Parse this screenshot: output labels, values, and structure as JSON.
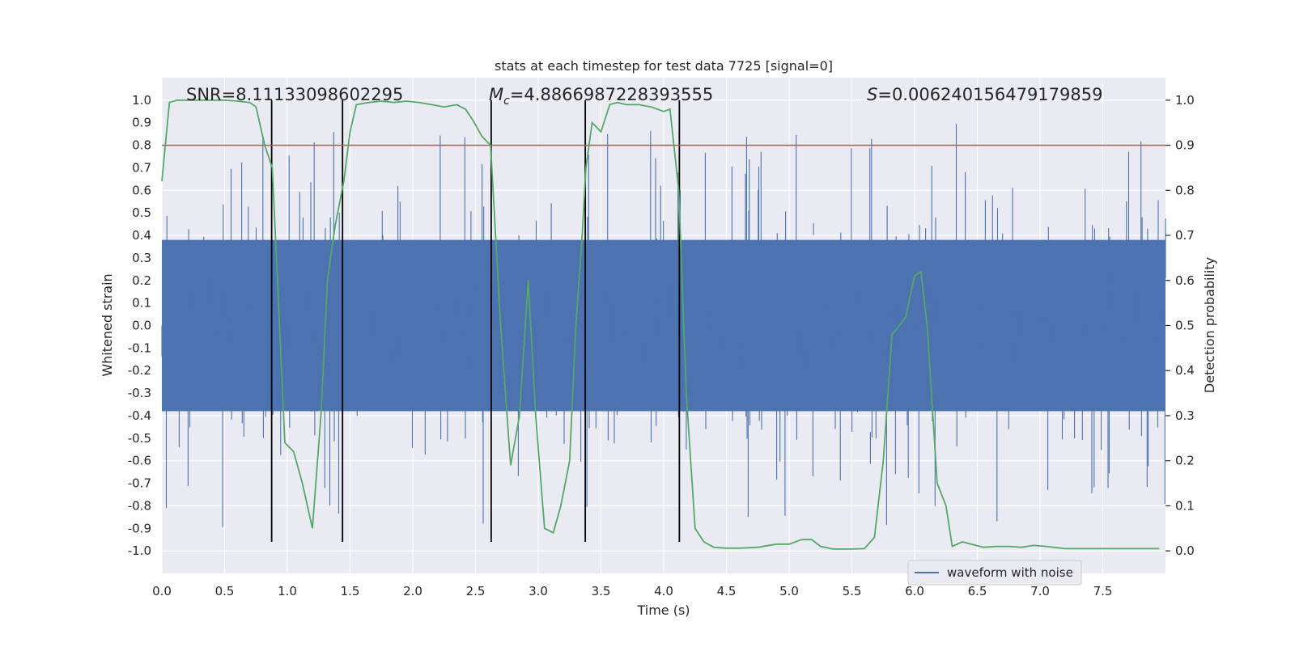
{
  "chart_data": {
    "type": "line",
    "title": "stats at each timestep for test data 7725 [signal=0]",
    "xlabel": "Time (s)",
    "ylabel_left": "Whitened strain",
    "ylabel_right": "Detection probability",
    "xlim": [
      0.0,
      8.0
    ],
    "ylim_left": [
      -1.1,
      1.1
    ],
    "ylim_right": [
      -0.05,
      1.05
    ],
    "x_ticks": [
      "0.0",
      "0.5",
      "1.0",
      "1.5",
      "2.0",
      "2.5",
      "3.0",
      "3.5",
      "4.0",
      "4.5",
      "5.0",
      "5.5",
      "6.0",
      "6.5",
      "7.0",
      "7.5"
    ],
    "y_ticks_left": [
      "1.0",
      "0.9",
      "0.8",
      "0.7",
      "0.6",
      "0.5",
      "0.4",
      "0.3",
      "0.2",
      "0.1",
      "0.0",
      "-0.1",
      "-0.2",
      "-0.3",
      "-0.4",
      "-0.5",
      "-0.6",
      "-0.7",
      "-0.8",
      "-0.9",
      "-1.0"
    ],
    "y_ticks_right": [
      "1.0",
      "0.9",
      "0.8",
      "0.7",
      "0.6",
      "0.5",
      "0.4",
      "0.3",
      "0.2",
      "0.1",
      "0.0"
    ],
    "grid": true,
    "legend_position": "lower-right",
    "annotations": {
      "snr": "SNR=8.11133098602295",
      "mc_symbol": "M",
      "mc_sub": "c",
      "mc_value": "=4.8866987228393555",
      "s_symbol": "S",
      "s_value": "=0.006240156479179859"
    },
    "series": [
      {
        "name": "waveform with noise",
        "color": "#4c72b0",
        "axis": "left",
        "kind": "noise_band",
        "envelope": {
          "typical_abs": 0.4,
          "max": 0.98,
          "min": -0.96
        }
      },
      {
        "name": "",
        "color": "#55a868",
        "axis": "right",
        "x": [
          0.0,
          0.06,
          0.12,
          0.2,
          0.3,
          0.4,
          0.5,
          0.6,
          0.7,
          0.75,
          0.82,
          0.88,
          0.93,
          0.98,
          1.05,
          1.12,
          1.2,
          1.27,
          1.32,
          1.38,
          1.45,
          1.5,
          1.55,
          1.65,
          1.75,
          1.85,
          1.95,
          2.05,
          2.15,
          2.25,
          2.35,
          2.42,
          2.48,
          2.55,
          2.62,
          2.7,
          2.78,
          2.85,
          2.92,
          2.98,
          3.05,
          3.12,
          3.18,
          3.25,
          3.3,
          3.35,
          3.38,
          3.43,
          3.5,
          3.57,
          3.63,
          3.7,
          3.8,
          3.9,
          4.0,
          4.05,
          4.12,
          4.18,
          4.25,
          4.32,
          4.4,
          4.5,
          4.6,
          4.75,
          4.9,
          5.0,
          5.1,
          5.18,
          5.25,
          5.35,
          5.5,
          5.6,
          5.68,
          5.75,
          5.82,
          5.88,
          5.93,
          6.0,
          6.05,
          6.1,
          6.18,
          6.25,
          6.3,
          6.38,
          6.45,
          6.55,
          6.65,
          6.75,
          6.85,
          6.95,
          7.05,
          7.2,
          7.4,
          7.6,
          7.8,
          7.95
        ],
        "y": [
          0.82,
          0.995,
          1.0,
          1.0,
          1.0,
          1.0,
          1.0,
          0.998,
          0.995,
          0.985,
          0.9,
          0.85,
          0.55,
          0.24,
          0.22,
          0.15,
          0.05,
          0.31,
          0.6,
          0.72,
          0.82,
          0.93,
          0.99,
          0.995,
          0.998,
          0.995,
          0.998,
          0.995,
          0.99,
          0.985,
          0.99,
          0.98,
          0.955,
          0.92,
          0.9,
          0.5,
          0.19,
          0.3,
          0.6,
          0.3,
          0.05,
          0.04,
          0.1,
          0.2,
          0.5,
          0.7,
          0.85,
          0.95,
          0.93,
          0.99,
          0.995,
          0.99,
          0.99,
          0.985,
          0.975,
          0.98,
          0.8,
          0.35,
          0.05,
          0.02,
          0.008,
          0.006,
          0.006,
          0.008,
          0.015,
          0.015,
          0.025,
          0.025,
          0.01,
          0.004,
          0.004,
          0.005,
          0.03,
          0.2,
          0.48,
          0.5,
          0.52,
          0.61,
          0.62,
          0.5,
          0.15,
          0.1,
          0.01,
          0.02,
          0.015,
          0.008,
          0.01,
          0.01,
          0.008,
          0.012,
          0.01,
          0.005,
          0.005,
          0.005,
          0.005,
          0.005
        ]
      }
    ],
    "threshold_line": {
      "value": 0.9,
      "axis": "right",
      "color": "#c44e52"
    },
    "vertical_markers": {
      "x": [
        0.875,
        1.44,
        2.625,
        3.375,
        4.125
      ],
      "y_from": -0.96,
      "y_to": 1.0,
      "color": "#000000"
    }
  }
}
